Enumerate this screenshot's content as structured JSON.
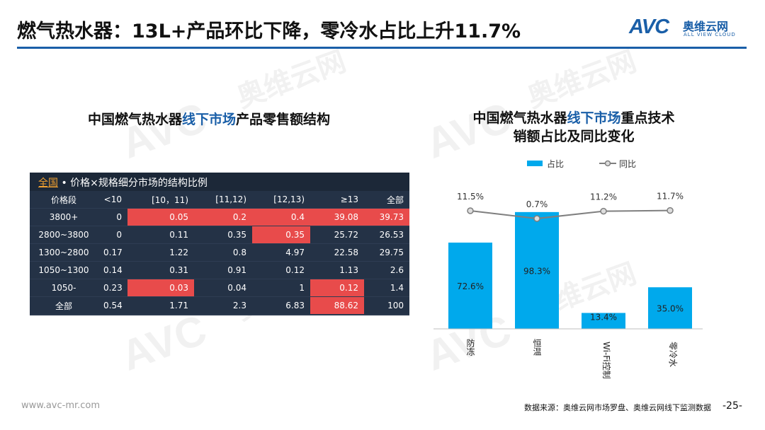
{
  "header": {
    "title": "燃气热水器：13L+产品环比下降，零冷水占比上升11.7%",
    "logo_text": "AVC",
    "logo_cn": "奥维云网",
    "logo_en": "ALL VIEW CLOUD"
  },
  "watermark": {
    "cn": "奥维云网",
    "en": "ALL VIEW CLOUD",
    "mark": "AVC"
  },
  "left_panel": {
    "title_pre": "中国燃气热水器",
    "title_hl": "线下市场",
    "title_post": "产品零售额结构",
    "subtitle_region": "全国",
    "subtitle_rest": " • 价格×规格细分市场的结构比例"
  },
  "right_panel": {
    "title_line1_pre": "中国燃气热水器",
    "title_line1_hl": "线下市场",
    "title_line1_post": "重点技术",
    "title_line2": "销额占比及同比变化"
  },
  "chart_data": [
    {
      "type": "table",
      "columns": [
        "价格段",
        "<10",
        "[10，11)",
        "[11,12)",
        "[12,13)",
        "≥13",
        "全部"
      ],
      "rows": [
        [
          "3800+",
          "0",
          "0.05",
          "0.2",
          "0.4",
          "39.08",
          "39.73"
        ],
        [
          "2800~3800",
          "0",
          "0.11",
          "0.35",
          "0.35",
          "25.72",
          "26.53"
        ],
        [
          "1300~2800",
          "0.17",
          "1.22",
          "0.8",
          "4.97",
          "22.58",
          "29.75"
        ],
        [
          "1050~1300",
          "0.14",
          "0.31",
          "0.91",
          "0.12",
          "1.13",
          "2.6"
        ],
        [
          "1050-",
          "0.23",
          "0.03",
          "0.04",
          "1",
          "0.12",
          "1.4"
        ],
        [
          "全部",
          "0.54",
          "1.71",
          "2.3",
          "6.83",
          "88.62",
          "100"
        ]
      ],
      "highlight_color": "#e84b4b",
      "highlighted_cells": [
        [
          0,
          2
        ],
        [
          0,
          3
        ],
        [
          0,
          4
        ],
        [
          0,
          5
        ],
        [
          0,
          6
        ],
        [
          1,
          4
        ],
        [
          4,
          2
        ],
        [
          4,
          5
        ],
        [
          5,
          5
        ]
      ]
    },
    {
      "type": "bar",
      "categories": [
        "防冻",
        "恒温",
        "Wi-Fi控制",
        "零冷水"
      ],
      "series": [
        {
          "name": "占比",
          "kind": "bar",
          "values": [
            72.6,
            98.3,
            13.4,
            35.0
          ],
          "labels": [
            "72.6%",
            "98.3%",
            "13.4%",
            "35.0%"
          ],
          "color": "#00a9ec"
        },
        {
          "name": "同比",
          "kind": "line",
          "values": [
            11.5,
            0.7,
            11.2,
            11.7
          ],
          "labels": [
            "11.5%",
            "0.7%",
            "11.2%",
            "11.7%"
          ],
          "color": "#7f7f7f"
        }
      ],
      "legend": "top",
      "grid": false
    }
  ],
  "footer": {
    "source": "数据来源：奥维云网市场罗盘、奥维云网线下监测数据",
    "page": "-25-",
    "url": "www.avc-mr.com"
  }
}
